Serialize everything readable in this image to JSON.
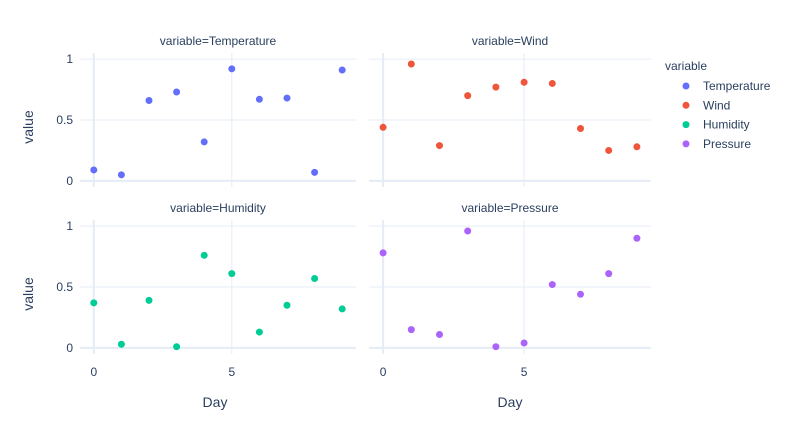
{
  "chart_data": {
    "type": "scatter",
    "layout": "facet-grid 2x2",
    "x": [
      0,
      1,
      2,
      3,
      4,
      5,
      6,
      7,
      8,
      9
    ],
    "xlabel": "Day",
    "ylabel": "value",
    "xlim": [
      -0.5,
      9.5
    ],
    "ylim": [
      -0.05,
      1.05
    ],
    "xticks": [
      0,
      5
    ],
    "yticks": [
      0,
      0.5,
      1
    ],
    "ytick_labels": [
      "0",
      "0.5",
      "1"
    ],
    "grid": true,
    "legend_title": "variable",
    "legend_position": "right",
    "facet_prefix": "variable=",
    "series": [
      {
        "name": "Temperature",
        "color": "#636efa",
        "values": [
          0.09,
          0.05,
          0.66,
          0.73,
          0.32,
          0.92,
          0.67,
          0.68,
          0.07,
          0.91
        ]
      },
      {
        "name": "Wind",
        "color": "#ef553b",
        "values": [
          0.44,
          0.96,
          0.29,
          0.7,
          0.77,
          0.81,
          0.8,
          0.43,
          0.25,
          0.28
        ]
      },
      {
        "name": "Humidity",
        "color": "#00cc96",
        "values": [
          0.37,
          0.03,
          0.39,
          0.01,
          0.76,
          0.61,
          0.13,
          0.35,
          0.57,
          0.32
        ]
      },
      {
        "name": "Pressure",
        "color": "#ab63fa",
        "values": [
          0.78,
          0.15,
          0.11,
          0.96,
          0.01,
          0.04,
          0.52,
          0.44,
          0.61,
          0.9
        ]
      }
    ]
  }
}
